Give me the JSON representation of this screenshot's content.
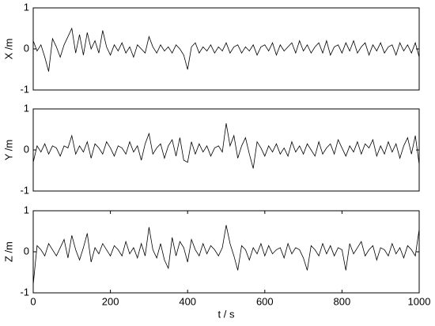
{
  "chart_data": [
    {
      "type": "line",
      "ylabel": "X /m",
      "color": "#000000",
      "x": [
        0,
        10,
        20,
        30,
        40,
        50,
        60,
        70,
        80,
        90,
        100,
        110,
        120,
        130,
        140,
        150,
        160,
        170,
        180,
        190,
        200,
        210,
        220,
        230,
        240,
        250,
        260,
        270,
        280,
        290,
        300,
        310,
        320,
        330,
        340,
        350,
        360,
        370,
        380,
        390,
        400,
        410,
        420,
        430,
        440,
        450,
        460,
        470,
        480,
        490,
        500,
        510,
        520,
        530,
        540,
        550,
        560,
        570,
        580,
        590,
        600,
        610,
        620,
        630,
        640,
        650,
        660,
        670,
        680,
        690,
        700,
        710,
        720,
        730,
        740,
        750,
        760,
        770,
        780,
        790,
        800,
        810,
        820,
        830,
        840,
        850,
        860,
        870,
        880,
        890,
        900,
        910,
        920,
        930,
        940,
        950,
        960,
        970,
        980,
        990,
        1000
      ],
      "values": [
        0.2,
        -0.05,
        0.1,
        -0.2,
        -0.55,
        0.25,
        0.05,
        -0.2,
        0.1,
        0.3,
        0.5,
        -0.1,
        0.35,
        -0.15,
        0.4,
        0,
        0.2,
        -0.1,
        0.45,
        0.05,
        -0.15,
        0.1,
        -0.05,
        0.15,
        -0.1,
        0.05,
        -0.2,
        0.1,
        0,
        -0.1,
        0.3,
        0.05,
        -0.1,
        0.1,
        -0.05,
        0.05,
        -0.1,
        0.1,
        0,
        -0.15,
        -0.5,
        0.05,
        0.15,
        -0.1,
        0.05,
        -0.05,
        0.1,
        -0.1,
        0.05,
        -0.05,
        0.15,
        -0.1,
        0.05,
        0.1,
        -0.1,
        0.05,
        -0.05,
        0.1,
        -0.15,
        0.05,
        0.1,
        -0.05,
        0.15,
        -0.15,
        0.1,
        -0.05,
        0.05,
        0.15,
        -0.1,
        0.2,
        -0.05,
        0.1,
        -0.1,
        0.05,
        0.15,
        -0.1,
        0.2,
        -0.15,
        0.05,
        0.1,
        -0.1,
        0.15,
        -0.05,
        0.2,
        -0.1,
        0.05,
        0.15,
        -0.15,
        0.1,
        -0.05,
        0.15,
        -0.1,
        0.05,
        0.1,
        -0.15,
        0.15,
        -0.05,
        0.1,
        -0.1,
        0.15,
        -0.2
      ],
      "xlim": [
        0,
        1000
      ],
      "ylim": [
        -1,
        1
      ],
      "yticks": [
        -1,
        0,
        1
      ]
    },
    {
      "type": "line",
      "ylabel": "Y /m",
      "color": "#000000",
      "x": [
        0,
        10,
        20,
        30,
        40,
        50,
        60,
        70,
        80,
        90,
        100,
        110,
        120,
        130,
        140,
        150,
        160,
        170,
        180,
        190,
        200,
        210,
        220,
        230,
        240,
        250,
        260,
        270,
        280,
        290,
        300,
        310,
        320,
        330,
        340,
        350,
        360,
        370,
        380,
        390,
        400,
        410,
        420,
        430,
        440,
        450,
        460,
        470,
        480,
        490,
        500,
        510,
        520,
        530,
        540,
        550,
        560,
        570,
        580,
        590,
        600,
        610,
        620,
        630,
        640,
        650,
        660,
        670,
        680,
        690,
        700,
        710,
        720,
        730,
        740,
        750,
        760,
        770,
        780,
        790,
        800,
        810,
        820,
        830,
        840,
        850,
        860,
        870,
        880,
        890,
        900,
        910,
        920,
        930,
        940,
        950,
        960,
        970,
        980,
        990,
        1000
      ],
      "values": [
        -0.3,
        0.1,
        -0.05,
        0.15,
        -0.1,
        0.1,
        0.05,
        -0.15,
        0.1,
        0.05,
        0.35,
        -0.1,
        0.1,
        -0.05,
        0.2,
        -0.2,
        0.15,
        0.05,
        -0.1,
        0.2,
        0.05,
        -0.15,
        0.1,
        0.05,
        -0.1,
        0.2,
        -0.05,
        0.1,
        -0.25,
        0.15,
        0.4,
        -0.1,
        0.05,
        0.15,
        -0.2,
        0.1,
        0.25,
        -0.15,
        0.3,
        -0.25,
        -0.3,
        0.2,
        -0.1,
        0.15,
        -0.05,
        0.1,
        -0.15,
        0.05,
        0.1,
        -0.05,
        0.65,
        0.1,
        0.35,
        -0.2,
        0.1,
        0.3,
        -0.1,
        -0.45,
        0.2,
        0.05,
        -0.15,
        0.1,
        -0.05,
        0.15,
        -0.1,
        0.05,
        -0.15,
        0.2,
        -0.05,
        0.1,
        -0.1,
        0.15,
        0,
        -0.15,
        0.2,
        -0.1,
        0.05,
        0.15,
        -0.1,
        0.25,
        0.05,
        -0.15,
        0.1,
        -0.05,
        0.2,
        -0.1,
        0.15,
        0.05,
        0.25,
        -0.15,
        0.1,
        -0.1,
        0.2,
        -0.05,
        0.15,
        -0.2,
        0.1,
        0.3,
        -0.1,
        0.35,
        -0.35
      ],
      "xlim": [
        0,
        1000
      ],
      "ylim": [
        -1,
        1
      ],
      "yticks": [
        -1,
        0,
        1
      ]
    },
    {
      "type": "line",
      "ylabel": "Z /m",
      "xlabel": "t / s",
      "color": "#000000",
      "x": [
        0,
        10,
        20,
        30,
        40,
        50,
        60,
        70,
        80,
        90,
        100,
        110,
        120,
        130,
        140,
        150,
        160,
        170,
        180,
        190,
        200,
        210,
        220,
        230,
        240,
        250,
        260,
        270,
        280,
        290,
        300,
        310,
        320,
        330,
        340,
        350,
        360,
        370,
        380,
        390,
        400,
        410,
        420,
        430,
        440,
        450,
        460,
        470,
        480,
        490,
        500,
        510,
        520,
        530,
        540,
        550,
        560,
        570,
        580,
        590,
        600,
        610,
        620,
        630,
        640,
        650,
        660,
        670,
        680,
        690,
        700,
        710,
        720,
        730,
        740,
        750,
        760,
        770,
        780,
        790,
        800,
        810,
        820,
        830,
        840,
        850,
        860,
        870,
        880,
        890,
        900,
        910,
        920,
        930,
        940,
        950,
        960,
        970,
        980,
        990,
        1000
      ],
      "values": [
        -0.8,
        0.15,
        0.05,
        -0.1,
        0.2,
        0.05,
        -0.1,
        0.1,
        0.3,
        -0.15,
        0.4,
        0.05,
        -0.2,
        0.1,
        0.45,
        -0.25,
        0.1,
        -0.05,
        0.2,
        0.05,
        -0.1,
        0.15,
        0.05,
        -0.1,
        0.25,
        -0.05,
        0.1,
        -0.15,
        0.2,
        -0.1,
        0.6,
        0.05,
        -0.15,
        0.2,
        -0.2,
        -0.4,
        0.35,
        -0.1,
        0.25,
        0.1,
        -0.25,
        0.3,
        0.05,
        -0.1,
        0.2,
        -0.05,
        0.15,
        0.05,
        -0.1,
        0.1,
        0.65,
        0.2,
        -0.1,
        -0.45,
        0.15,
        0.05,
        -0.2,
        0.1,
        -0.05,
        0.2,
        -0.1,
        0.15,
        -0.05,
        0.05,
        0.1,
        -0.15,
        0.2,
        -0.05,
        0.1,
        0.05,
        -0.15,
        -0.45,
        0.15,
        0.05,
        -0.1,
        0.2,
        -0.05,
        0.15,
        -0.1,
        0.1,
        0.05,
        -0.45,
        0.2,
        -0.05,
        0.1,
        0.25,
        -0.1,
        0.05,
        0.15,
        -0.2,
        0.1,
        0.05,
        -0.1,
        0.2,
        -0.05,
        0.1,
        -0.15,
        0.15,
        0.05,
        -0.1,
        0.55
      ],
      "xlim": [
        0,
        1000
      ],
      "ylim": [
        -1,
        1
      ],
      "yticks": [
        -1,
        0,
        1
      ],
      "xticks": [
        0,
        200,
        400,
        600,
        800,
        1000
      ]
    }
  ]
}
